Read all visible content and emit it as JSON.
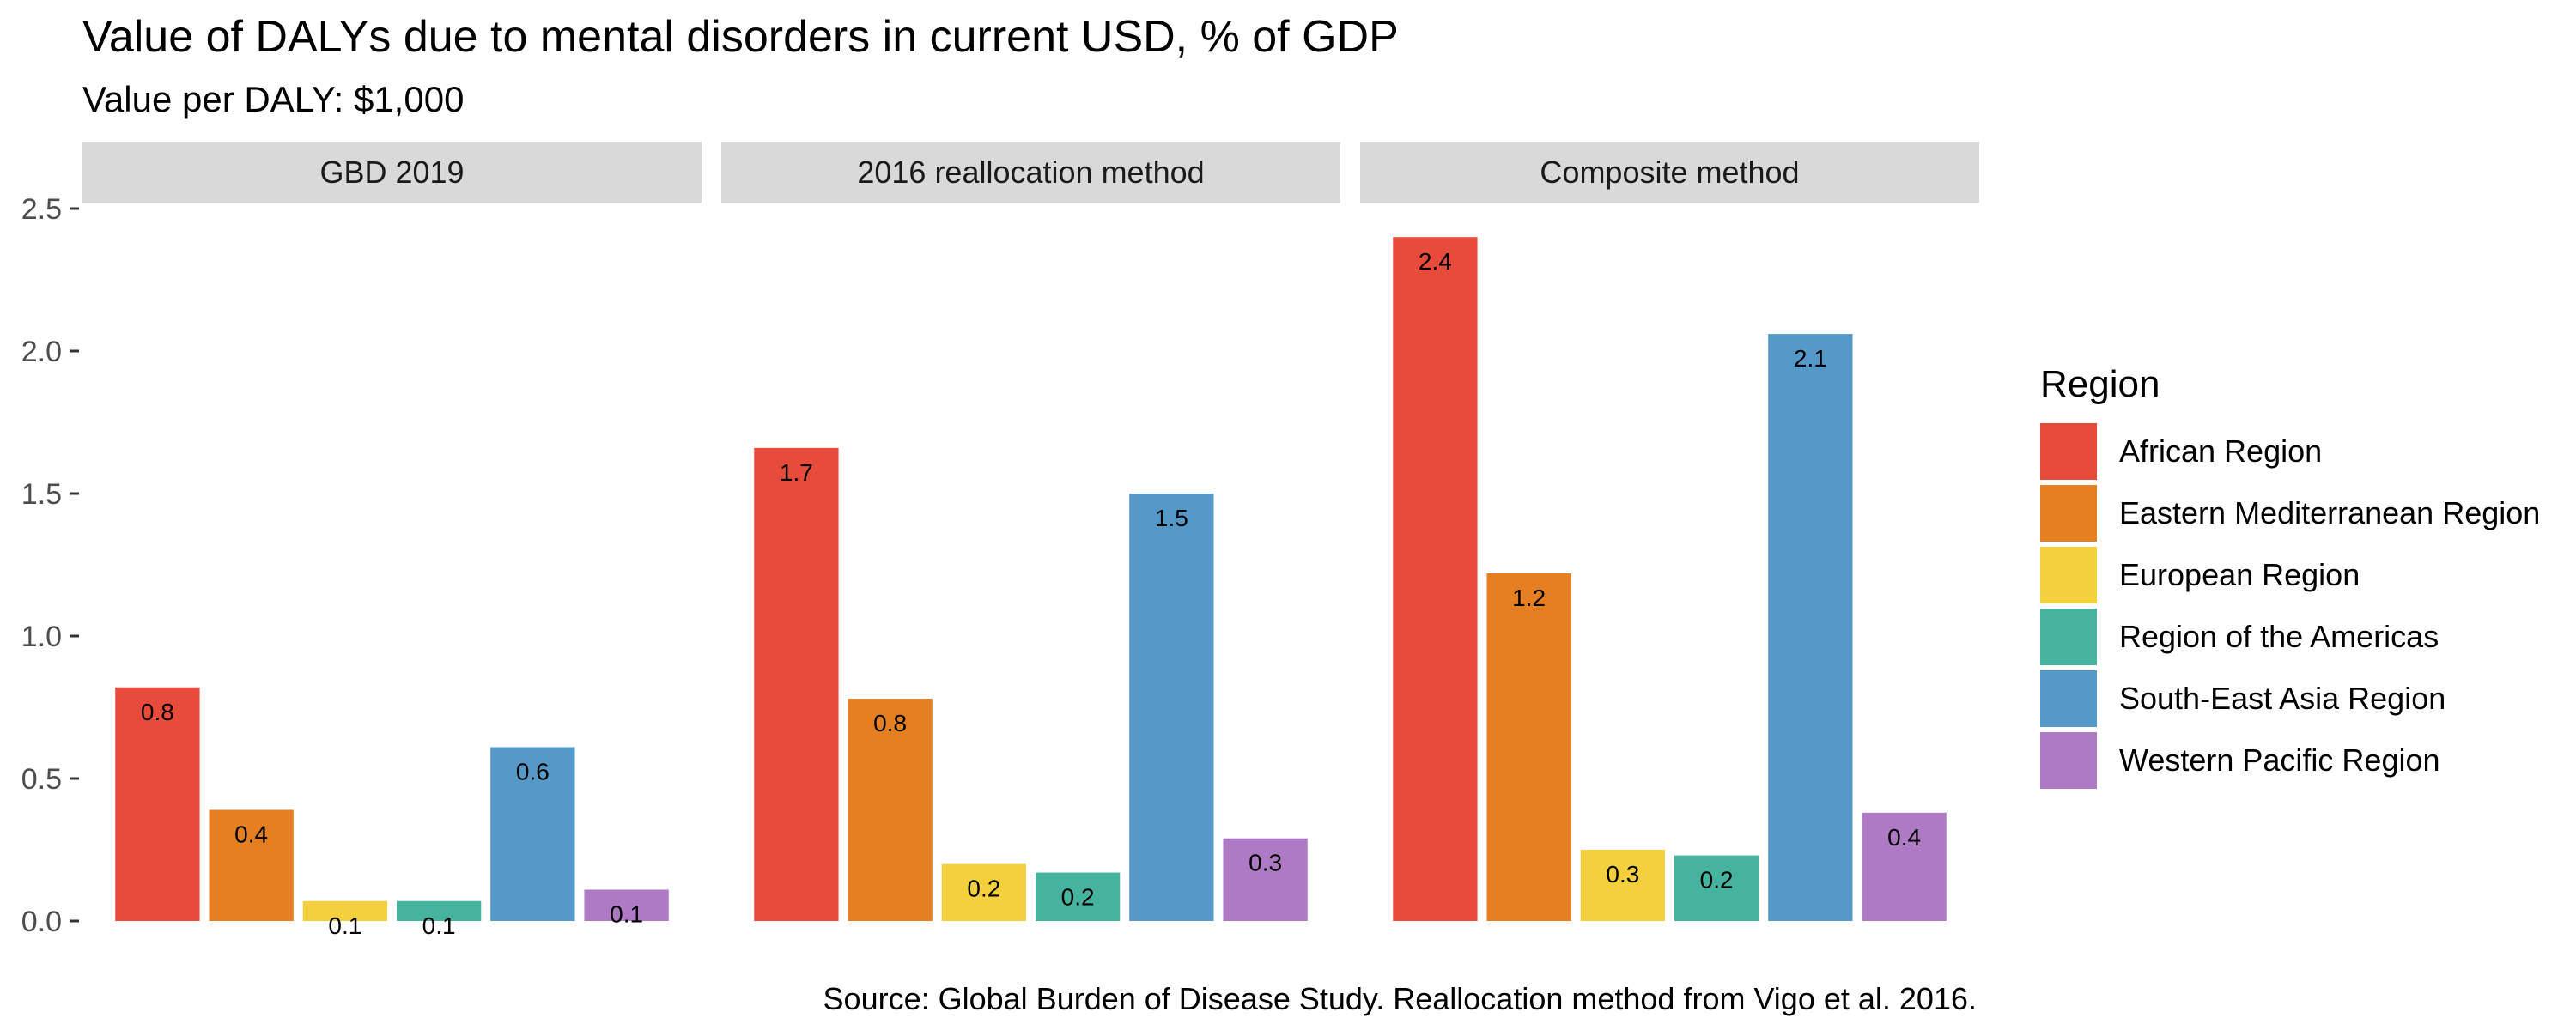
{
  "chart_data": {
    "type": "bar",
    "title": "Value of DALYs due to mental disorders in current USD, % of GDP",
    "subtitle": "Value per DALY: $1,000",
    "caption": "Source: Global Burden of Disease Study. Reallocation method from Vigo et al. 2016.",
    "xlabel": "",
    "ylabel": "",
    "ylim": [
      0,
      2.5
    ],
    "yticks": [
      0.0,
      0.5,
      1.0,
      1.5,
      2.0,
      2.5
    ],
    "ytick_labels": [
      "0.0",
      "0.5",
      "1.0",
      "1.5",
      "2.0",
      "2.5"
    ],
    "grid": false,
    "legend": {
      "title": "Region",
      "placement": "right",
      "items": [
        {
          "name": "African Region",
          "color": "#E64B3C"
        },
        {
          "name": "Eastern Mediterranean Region",
          "color": "#E67E22"
        },
        {
          "name": "European Region",
          "color": "#F4D03F"
        },
        {
          "name": "Region of the Americas",
          "color": "#45B39D"
        },
        {
          "name": "South-East Asia Region",
          "color": "#5499C7"
        },
        {
          "name": "Western Pacific Region",
          "color": "#AF7AC5"
        }
      ]
    },
    "panels": [
      {
        "name": "GBD 2019",
        "values": [
          0.82,
          0.39,
          0.07,
          0.07,
          0.61,
          0.11
        ],
        "labels": [
          "0.8",
          "0.4",
          "0.1",
          "0.1",
          "0.6",
          "0.1"
        ]
      },
      {
        "name": "2016 reallocation method",
        "values": [
          1.66,
          0.78,
          0.2,
          0.17,
          1.5,
          0.29
        ],
        "labels": [
          "1.7",
          "0.8",
          "0.2",
          "0.2",
          "1.5",
          "0.3"
        ]
      },
      {
        "name": "Composite method",
        "values": [
          2.4,
          1.22,
          0.25,
          0.23,
          2.06,
          0.38
        ],
        "labels": [
          "2.4",
          "1.2",
          "0.3",
          "0.2",
          "2.1",
          "0.4"
        ]
      }
    ]
  }
}
